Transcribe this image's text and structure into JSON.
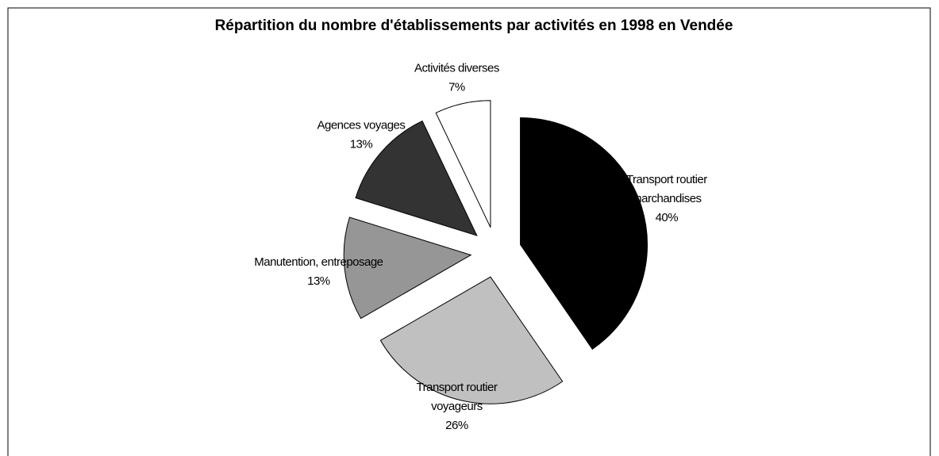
{
  "chart_data": {
    "type": "pie",
    "title": "Répartition du nombre d'établissements par activités en 1998 en Vendée",
    "categories": [
      "Transport routier marchandises",
      "Transport routier voyageurs",
      "Manutention, entreposage",
      "Agences voyages",
      "Activités diverses"
    ],
    "values": [
      40,
      26,
      13,
      13,
      7
    ],
    "value_labels": [
      "40%",
      "26%",
      "13%",
      "13%",
      "7%"
    ],
    "colors": [
      "#000000",
      "#c0c0c0",
      "#969696",
      "#333333",
      "#ffffff"
    ]
  }
}
